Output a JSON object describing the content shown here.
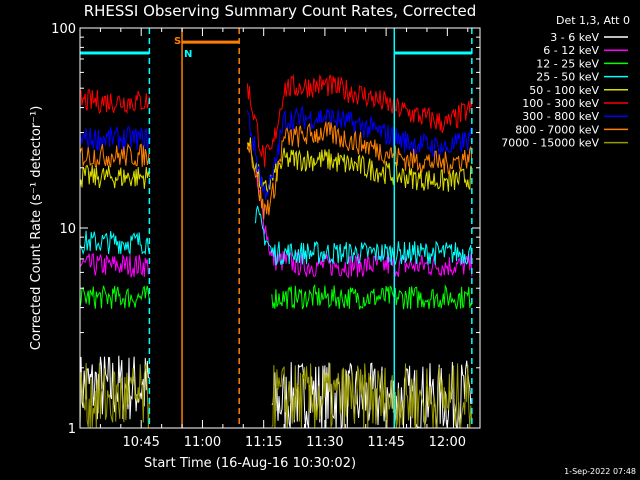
{
  "chart_data": {
    "type": "line",
    "title": "RHESSI Observing Summary Count Rates, Corrected",
    "xlabel": "Start Time (16-Aug-16 10:30:02)",
    "ylabel": "Corrected Count Rate (s⁻¹ detector⁻¹)",
    "x_range": [
      "10:30",
      "12:08"
    ],
    "x_ticks": [
      "10:45",
      "11:00",
      "11:15",
      "11:30",
      "11:45",
      "12:00"
    ],
    "y_scale": "log",
    "ylim": [
      1,
      100
    ],
    "y_ticks": [
      "1",
      "10",
      "100"
    ],
    "legend_position": "outside-right",
    "legend_header": "Det 1,3, Att 0",
    "series": [
      {
        "name": "3 - 6 keV",
        "color": "#ffffff",
        "x": [
          "10:30",
          "10:47",
          "10:55",
          "11:09",
          "11:17",
          "11:25",
          "11:35",
          "11:45",
          "12:00",
          "12:06"
        ],
        "values": [
          1.6,
          1.6,
          null,
          null,
          1.3,
          1.5,
          1.4,
          1.4,
          1.4,
          1.5
        ]
      },
      {
        "name": "6 - 12 keV",
        "color": "#ff00ff",
        "x": [
          "10:30",
          "10:47",
          "10:55",
          "11:09",
          "11:13",
          "11:17",
          "11:25",
          "11:35",
          "11:45",
          "12:00",
          "12:06"
        ],
        "values": [
          6.5,
          6.5,
          null,
          null,
          18,
          7,
          6.5,
          6.5,
          6.5,
          6.5,
          6.5
        ]
      },
      {
        "name": "12 - 25 keV",
        "color": "#00ff00",
        "x": [
          "10:30",
          "10:47",
          "10:55",
          "11:09",
          "11:17",
          "11:25",
          "11:35",
          "11:45",
          "12:00",
          "12:06"
        ],
        "values": [
          4.5,
          4.5,
          null,
          null,
          4.5,
          4.5,
          4.5,
          4.5,
          4.5,
          4.5
        ]
      },
      {
        "name": "25 - 50 keV",
        "color": "#00ffff",
        "x": [
          "10:30",
          "10:47",
          "10:55",
          "11:09",
          "11:13",
          "11:17",
          "11:25",
          "11:35",
          "11:45",
          "12:00",
          "12:06"
        ],
        "values": [
          8.5,
          8.5,
          null,
          null,
          12,
          7.5,
          7.5,
          7.5,
          7.5,
          7.5,
          7.5
        ]
      },
      {
        "name": "50 - 100 keV",
        "color": "#dddd00",
        "x": [
          "10:30",
          "10:47",
          "10:55",
          "11:09",
          "11:11",
          "11:15",
          "11:20",
          "11:30",
          "11:40",
          "11:50",
          "12:00",
          "12:06"
        ],
        "values": [
          18,
          18,
          null,
          null,
          28,
          15,
          22,
          22,
          20,
          18,
          17,
          18
        ]
      },
      {
        "name": "100 - 300 keV",
        "color": "#ff0000",
        "x": [
          "10:30",
          "10:47",
          "10:55",
          "11:09",
          "11:11",
          "11:15",
          "11:17",
          "11:20",
          "11:30",
          "11:40",
          "11:50",
          "12:00",
          "12:06"
        ],
        "values": [
          43,
          43,
          null,
          null,
          52,
          22,
          24,
          50,
          52,
          46,
          38,
          33,
          40
        ]
      },
      {
        "name": "300 - 800 keV",
        "color": "#0000ff",
        "x": [
          "10:30",
          "10:47",
          "10:55",
          "11:09",
          "11:11",
          "11:15",
          "11:17",
          "11:20",
          "11:30",
          "11:40",
          "11:50",
          "12:00",
          "12:06"
        ],
        "values": [
          28,
          28,
          null,
          null,
          38,
          15,
          17,
          35,
          36,
          32,
          27,
          25,
          28
        ]
      },
      {
        "name": "800 - 7000 keV",
        "color": "#ff8000",
        "x": [
          "10:30",
          "10:47",
          "10:55",
          "11:09",
          "11:11",
          "11:15",
          "11:17",
          "11:20",
          "11:30",
          "11:40",
          "11:50",
          "12:00",
          "12:06"
        ],
        "values": [
          23,
          23,
          null,
          null,
          30,
          12,
          14,
          28,
          30,
          26,
          22,
          21,
          23
        ]
      },
      {
        "name": "7000 - 15000 keV",
        "color": "#999900",
        "x": [
          "10:30",
          "10:47",
          "10:55",
          "11:09",
          "11:17",
          "11:25",
          "11:35",
          "11:45",
          "12:00",
          "12:06"
        ],
        "values": [
          1.4,
          1.4,
          null,
          null,
          1.4,
          1.4,
          1.4,
          1.4,
          1.4,
          1.4
        ]
      }
    ],
    "flags": [
      {
        "label": "S",
        "color": "#ff8000",
        "level": 85,
        "start": "10:55",
        "end": "11:09"
      },
      {
        "label": "N",
        "color": "#00ffff",
        "level": 75,
        "start": "10:30",
        "end": "10:47"
      },
      {
        "label": "",
        "color": "#00ffff",
        "level": 75,
        "start": "11:47",
        "end": "12:06"
      }
    ],
    "vertical_markers": [
      {
        "x": "10:47",
        "color": "#00ffff",
        "style": "dashed"
      },
      {
        "x": "10:55",
        "color": "#ff8000",
        "style": "solid"
      },
      {
        "x": "11:09",
        "color": "#ff8000",
        "style": "dashed"
      },
      {
        "x": "11:47",
        "color": "#00ffff",
        "style": "solid"
      },
      {
        "x": "12:06",
        "color": "#00ffff",
        "style": "dashed"
      }
    ],
    "timestamp": "1-Sep-2022 07:48"
  }
}
